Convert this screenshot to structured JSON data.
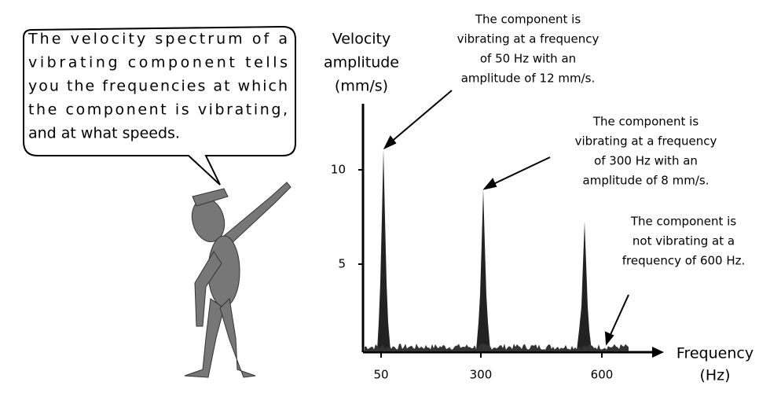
{
  "bubble": {
    "lines": [
      "The velocity spectrum of a",
      "vibrating component tells",
      "you the frequencies at which",
      "the component is vibrating,",
      "and at what speeds."
    ]
  },
  "y_axis": {
    "label": [
      "Velocity",
      "amplitude",
      "(mm/s)"
    ],
    "ticks": [
      5,
      10
    ]
  },
  "x_axis": {
    "label": [
      "Frequency",
      "(Hz)"
    ],
    "ticks": [
      50,
      300,
      600
    ]
  },
  "annotations": [
    {
      "lines": [
        "The component is",
        "vibrating at a frequency",
        "of 50 Hz with an",
        "amplitude of 12 mm/s."
      ]
    },
    {
      "lines": [
        "The component is",
        "vibrating at a frequency",
        "of 300 Hz with an",
        "amplitude of 8 mm/s."
      ]
    },
    {
      "lines": [
        "The component is",
        "not vibrating at a",
        "frequency of 600 Hz."
      ]
    }
  ]
}
